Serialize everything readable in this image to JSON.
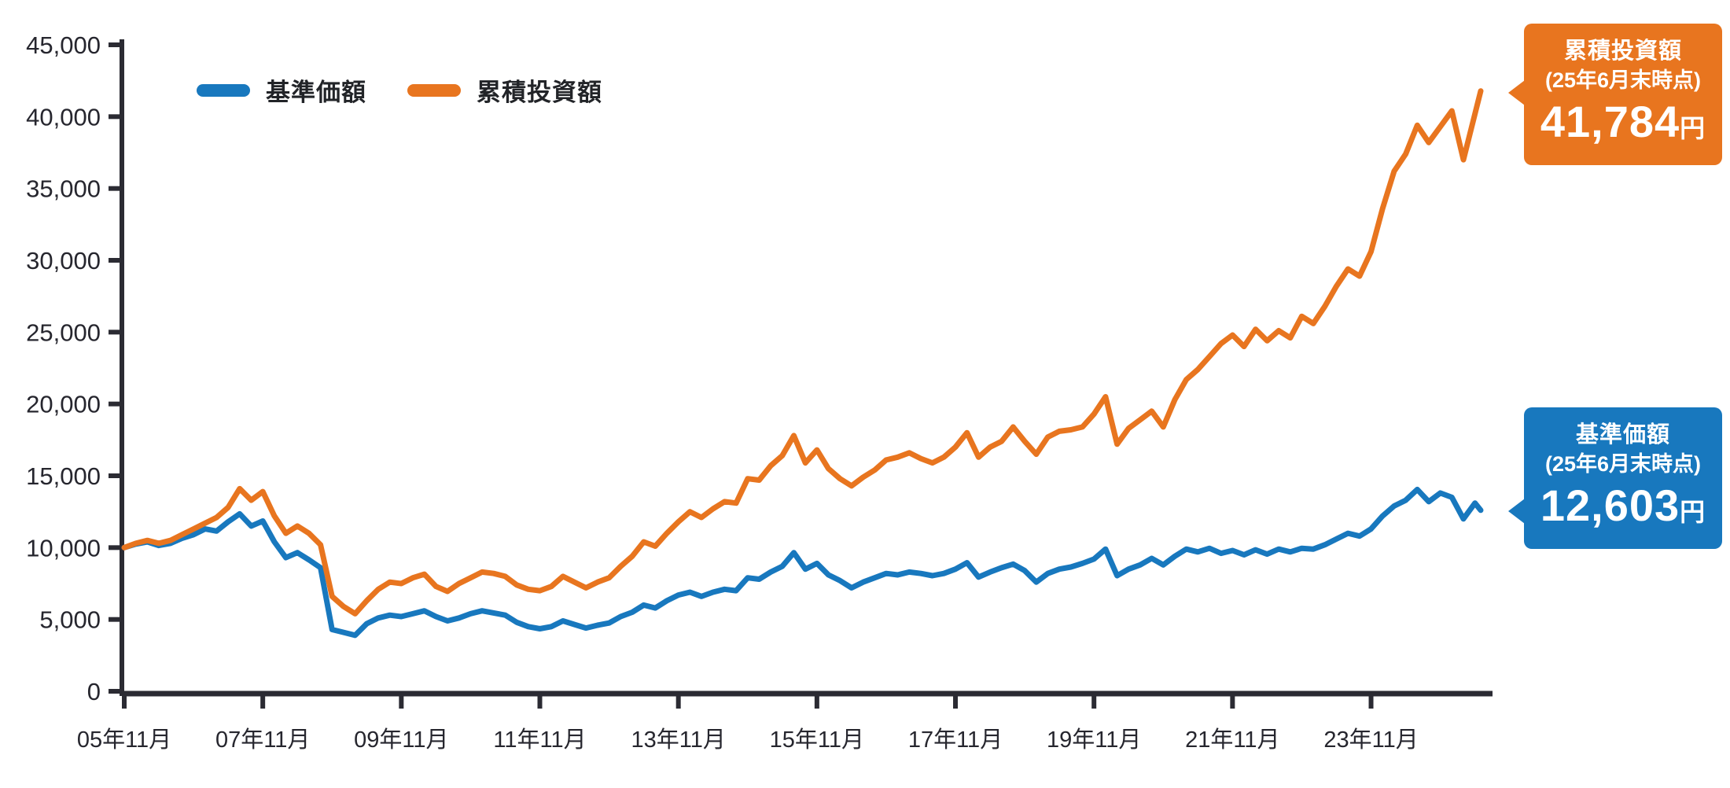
{
  "chart_data": {
    "type": "line",
    "title": "",
    "xlabel": "",
    "ylabel": "",
    "ylim": [
      0,
      45000
    ],
    "grid": false,
    "legend_position": "top-left",
    "axis_color": "#2b2b33",
    "label_color": "#26262e",
    "y_ticks": [
      {
        "value": 0,
        "label": "0"
      },
      {
        "value": 5000,
        "label": "5,000"
      },
      {
        "value": 10000,
        "label": "10,000"
      },
      {
        "value": 15000,
        "label": "15,000"
      },
      {
        "value": 20000,
        "label": "20,000"
      },
      {
        "value": 25000,
        "label": "25,000"
      },
      {
        "value": 30000,
        "label": "30,000"
      },
      {
        "value": 35000,
        "label": "35,000"
      },
      {
        "value": 40000,
        "label": "40,000"
      },
      {
        "value": 45000,
        "label": "45,000"
      }
    ],
    "x_ticks": [
      {
        "month": 0,
        "label": "05年11月"
      },
      {
        "month": 24,
        "label": "07年11月"
      },
      {
        "month": 48,
        "label": "09年11月"
      },
      {
        "month": 72,
        "label": "11年11月"
      },
      {
        "month": 96,
        "label": "13年11月"
      },
      {
        "month": 120,
        "label": "15年11月"
      },
      {
        "month": 144,
        "label": "17年11月"
      },
      {
        "month": 168,
        "label": "19年11月"
      },
      {
        "month": 192,
        "label": "21年11月"
      },
      {
        "month": 216,
        "label": "23年11月"
      }
    ],
    "x_start": "2005-11",
    "x_end": "2025-06",
    "interval_months": 2,
    "end_month": 235,
    "series": [
      {
        "name": "基準価額",
        "color": "#1878BE",
        "final_value": 12603,
        "values": [
          10000,
          10250,
          10400,
          10150,
          10300,
          10650,
          10900,
          11300,
          11150,
          11800,
          12350,
          11500,
          11850,
          10400,
          9300,
          9650,
          9150,
          8600,
          4300,
          4100,
          3900,
          4700,
          5100,
          5300,
          5200,
          5400,
          5600,
          5200,
          4900,
          5100,
          5400,
          5600,
          5450,
          5300,
          4800,
          4500,
          4350,
          4500,
          4900,
          4650,
          4400,
          4600,
          4750,
          5200,
          5500,
          6000,
          5800,
          6300,
          6700,
          6900,
          6600,
          6900,
          7100,
          7000,
          7900,
          7800,
          8300,
          8700,
          9650,
          8500,
          8900,
          8100,
          7700,
          7200,
          7600,
          7900,
          8200,
          8100,
          8300,
          8200,
          8050,
          8200,
          8500,
          8950,
          7950,
          8300,
          8600,
          8850,
          8400,
          7600,
          8200,
          8500,
          8650,
          8900,
          9200,
          9900,
          8050,
          8500,
          8800,
          9250,
          8800,
          9400,
          9900,
          9700,
          9950,
          9600,
          9800,
          9500,
          9850,
          9550,
          9900,
          9700,
          9950,
          9900,
          10200,
          10600,
          11000,
          10800,
          11300,
          12200,
          12900,
          13300,
          14050,
          13200,
          13800,
          13500,
          12000,
          13100,
          12603
        ]
      },
      {
        "name": "累積投資額",
        "color": "#E8751F",
        "final_value": 41784,
        "values": [
          10000,
          10300,
          10500,
          10300,
          10500,
          10900,
          11300,
          11700,
          12100,
          12800,
          14100,
          13300,
          13900,
          12200,
          11000,
          11500,
          11000,
          10200,
          6600,
          5900,
          5400,
          6300,
          7100,
          7600,
          7500,
          7900,
          8150,
          7300,
          6950,
          7500,
          7900,
          8300,
          8200,
          8000,
          7400,
          7100,
          7000,
          7300,
          8000,
          7600,
          7200,
          7600,
          7900,
          8700,
          9400,
          10400,
          10100,
          11000,
          11800,
          12500,
          12100,
          12700,
          13200,
          13100,
          14800,
          14700,
          15700,
          16400,
          17800,
          15900,
          16800,
          15500,
          14800,
          14300,
          14900,
          15400,
          16100,
          16300,
          16600,
          16200,
          15900,
          16300,
          17000,
          18000,
          16300,
          17000,
          17400,
          18400,
          17400,
          16500,
          17700,
          18100,
          18200,
          18400,
          19300,
          20500,
          17200,
          18300,
          18900,
          19500,
          18400,
          20300,
          21700,
          22400,
          23300,
          24200,
          24800,
          24000,
          25200,
          24400,
          25100,
          24600,
          26100,
          25600,
          26800,
          28200,
          29400,
          28900,
          30600,
          33600,
          36200,
          37400,
          39400,
          38200,
          39300,
          40400,
          37000,
          40200,
          41784
        ]
      }
    ]
  },
  "legend": {
    "items": [
      {
        "label": "基準価額",
        "color": "#1878BE"
      },
      {
        "label": "累積投資額",
        "color": "#E8751F"
      }
    ]
  },
  "callouts": {
    "orange": {
      "title": "累積投資額",
      "subtitle": "(25年6月末時点)",
      "value": "41,784",
      "unit": "円",
      "color": "#E8751F"
    },
    "blue": {
      "title": "基準価額",
      "subtitle": "(25年6月末時点)",
      "value": "12,603",
      "unit": "円",
      "color": "#1878BE"
    }
  }
}
